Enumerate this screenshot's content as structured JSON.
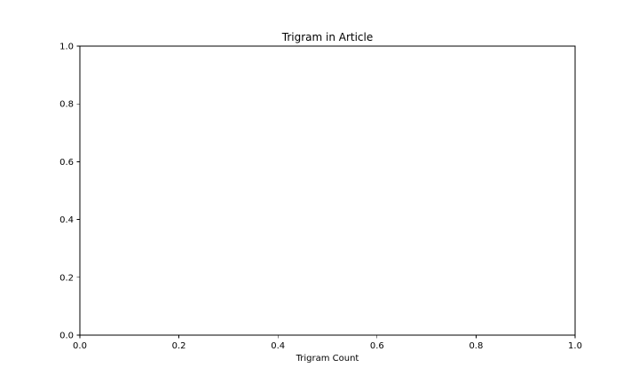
{
  "chart_data": {
    "type": "bar",
    "title": "Trigram in Article",
    "xlabel": "Trigram Count",
    "ylabel": "",
    "categories": [],
    "values": [],
    "xlim": [
      0.0,
      1.0
    ],
    "ylim": [
      0.0,
      1.0
    ],
    "x_ticks": [
      0.0,
      0.2,
      0.4,
      0.6,
      0.8,
      1.0
    ],
    "y_ticks": [
      0.0,
      0.2,
      0.4,
      0.6,
      0.8,
      1.0
    ],
    "x_tick_labels": [
      "0.0",
      "0.2",
      "0.4",
      "0.6",
      "0.8",
      "1.0"
    ],
    "y_tick_labels": [
      "0.0",
      "0.2",
      "0.4",
      "0.6",
      "0.8",
      "1.0"
    ],
    "grid": false,
    "legend": "none"
  },
  "colors": {
    "background": "#ffffff",
    "axis": "#000000",
    "text": "#000000"
  }
}
